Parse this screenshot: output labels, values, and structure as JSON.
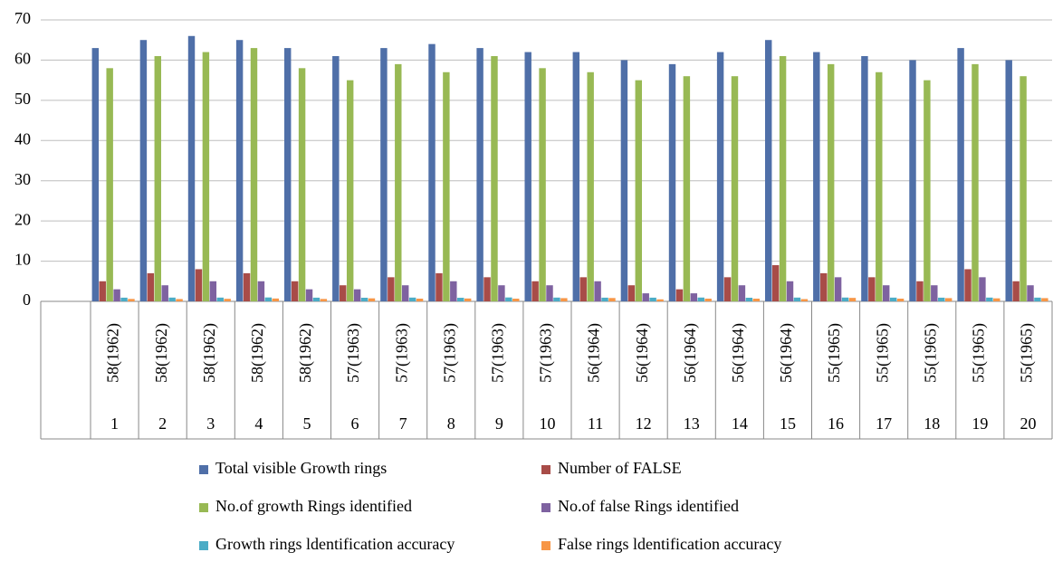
{
  "chart_data": {
    "type": "bar",
    "categories": [
      "1",
      "2",
      "3",
      "4",
      "5",
      "6",
      "7",
      "8",
      "9",
      "10",
      "11",
      "12",
      "13",
      "14",
      "15",
      "16",
      "17",
      "18",
      "19",
      "20"
    ],
    "category_labels": [
      "58(1962)",
      "58(1962)",
      "58(1962)",
      "58(1962)",
      "58(1962)",
      "57(1963)",
      "57(1963)",
      "57(1963)",
      "57(1963)",
      "57(1963)",
      "56(1964)",
      "56(1964)",
      "56(1964)",
      "56(1964)",
      "56(1964)",
      "55(1965)",
      "55(1965)",
      "55(1965)",
      "55(1965)",
      "55(1965)"
    ],
    "series": [
      {
        "name": "Total visible Growth rings",
        "color": "#4f6fa8",
        "values": [
          63,
          65,
          66,
          65,
          63,
          61,
          63,
          64,
          63,
          62,
          62,
          60,
          59,
          62,
          65,
          62,
          61,
          60,
          63,
          60
        ]
      },
      {
        "name": "Number of FALSE",
        "color": "#a84c48",
        "values": [
          5,
          7,
          8,
          7,
          5,
          4,
          6,
          7,
          6,
          5,
          6,
          4,
          3,
          6,
          9,
          7,
          6,
          5,
          8,
          5
        ]
      },
      {
        "name": "No.of growth Rings identified",
        "color": "#98b954",
        "values": [
          58,
          61,
          62,
          63,
          58,
          55,
          59,
          57,
          61,
          58,
          57,
          55,
          56,
          56,
          61,
          59,
          57,
          55,
          59,
          56
        ]
      },
      {
        "name": "No.of false Rings identified",
        "color": "#7e62a0",
        "values": [
          3,
          4,
          5,
          5,
          3,
          3,
          4,
          5,
          4,
          4,
          5,
          2,
          2,
          4,
          5,
          6,
          4,
          4,
          6,
          4
        ]
      },
      {
        "name": "Growth rings ldentification accuracy",
        "color": "#4bacc6",
        "values": [
          0.92,
          0.94,
          0.94,
          0.97,
          0.92,
          0.9,
          0.94,
          0.89,
          0.97,
          0.94,
          0.92,
          0.92,
          0.95,
          0.9,
          0.94,
          0.95,
          0.93,
          0.92,
          0.94,
          0.93
        ]
      },
      {
        "name": "False rings ldentification accuracy",
        "color": "#f79646",
        "values": [
          0.6,
          0.57,
          0.63,
          0.71,
          0.6,
          0.75,
          0.67,
          0.71,
          0.67,
          0.8,
          0.83,
          0.5,
          0.67,
          0.67,
          0.56,
          0.86,
          0.67,
          0.8,
          0.75,
          0.8
        ]
      }
    ],
    "ylim": [
      0,
      70
    ],
    "yticks": [
      0,
      10,
      20,
      30,
      40,
      50,
      60,
      70
    ],
    "grid": true
  }
}
